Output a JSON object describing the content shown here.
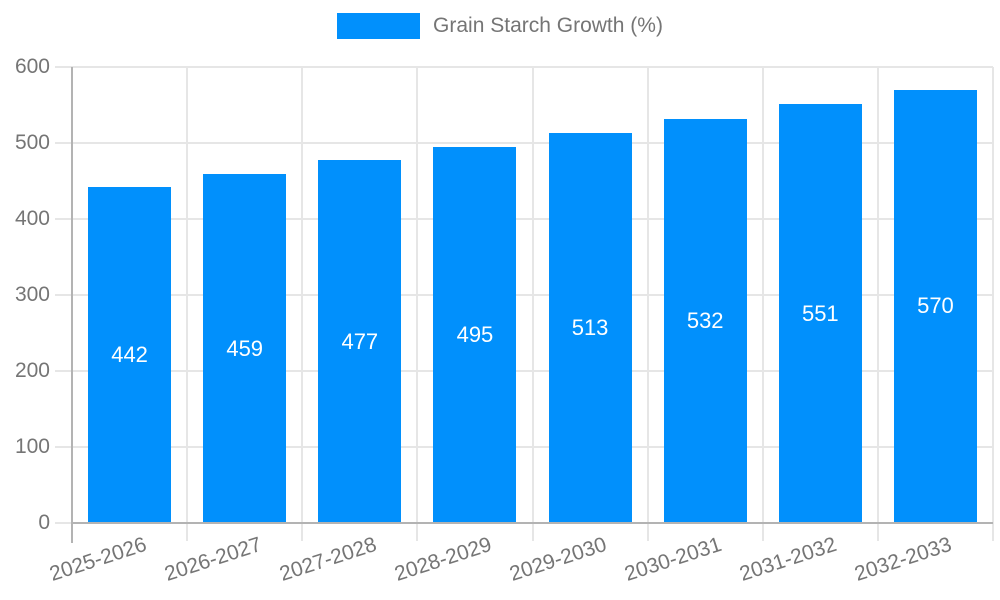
{
  "chart_data": {
    "type": "bar",
    "title": "Grain Starch Growth (%)",
    "categories": [
      "2025-2026",
      "2026-2027",
      "2027-2028",
      "2028-2029",
      "2029-2030",
      "2030-2031",
      "2031-2032",
      "2032-2033"
    ],
    "series": [
      {
        "name": "Grain Starch Growth (%)",
        "values": [
          442,
          459,
          477,
          495,
          513,
          532,
          551,
          570
        ]
      }
    ],
    "bar_value_labels": [
      "442",
      "459",
      "477",
      "495",
      "513",
      "532",
      "551",
      "570"
    ],
    "xlabel": "",
    "ylabel": "",
    "ylim": [
      0,
      600
    ],
    "ytick_step": 100,
    "yticks": [
      0,
      100,
      200,
      300,
      400,
      500,
      600
    ],
    "grid": true,
    "legend_position": "top-center",
    "colors": {
      "bar": "#0190FC",
      "grid": "#E6E6E6",
      "axis": "#B3B3B3",
      "tick_text": "#757575",
      "bar_label_text": "#FFFFFF",
      "background": "#FFFFFF"
    }
  }
}
